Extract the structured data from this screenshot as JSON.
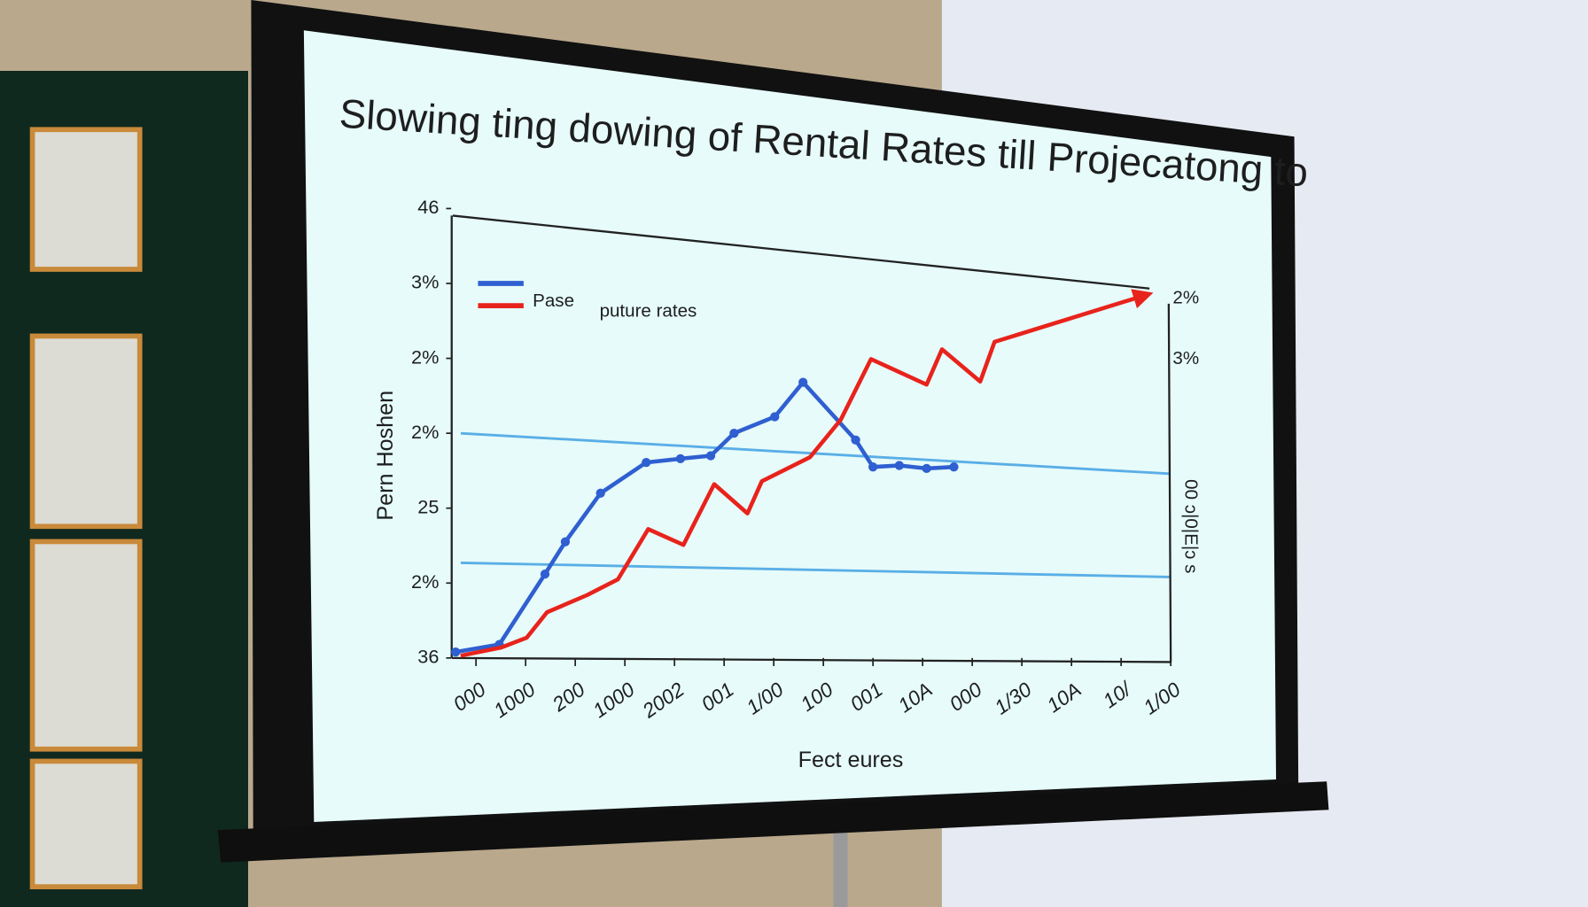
{
  "chart_data": {
    "type": "line",
    "title": "Slowing ting dowing of Rental Rates till Projecatong to",
    "xlabel": "Fect eures",
    "ylabel": "Pern Hoshen",
    "y2label": "00 ɔ|0|E|ɔ s",
    "y2ticks_labels": [
      "2%",
      "3%"
    ],
    "xlim": [
      -0.5,
      14
    ],
    "xticks": [
      {
        "value": 0,
        "label": "000"
      },
      {
        "value": 1,
        "label": "1000"
      },
      {
        "value": 2,
        "label": "200"
      },
      {
        "value": 3,
        "label": "1000"
      },
      {
        "value": 4,
        "label": "2002"
      },
      {
        "value": 5,
        "label": "001"
      },
      {
        "value": 6,
        "label": "1/00"
      },
      {
        "value": 7,
        "label": "100"
      },
      {
        "value": 8,
        "label": "001"
      },
      {
        "value": 9,
        "label": "10A"
      },
      {
        "value": 10,
        "label": "000"
      },
      {
        "value": 11,
        "label": "1/30"
      },
      {
        "value": 12,
        "label": "10A"
      },
      {
        "value": 13,
        "label": "10/"
      },
      {
        "value": 14,
        "label": "1/00"
      }
    ],
    "ylim": [
      0,
      6
    ],
    "yticks": [
      {
        "value": 0,
        "label": "36"
      },
      {
        "value": 1,
        "label": "2%"
      },
      {
        "value": 2,
        "label": "25"
      },
      {
        "value": 3,
        "label": "2%"
      },
      {
        "value": 4,
        "label": "2%"
      },
      {
        "value": 5,
        "label": "3%"
      },
      {
        "value": 6,
        "label": "46"
      }
    ],
    "legend": "top-left",
    "series": [
      {
        "name": "Pase",
        "color": "#2f5fd0",
        "markers": true,
        "x": [
          -0.41,
          0.47,
          1.39,
          1.8,
          2.51,
          3.43,
          4.12,
          4.73,
          5.2,
          6.02,
          6.59,
          7.65,
          8.0,
          8.53,
          9.08,
          9.63
        ],
        "values": [
          0.08,
          0.18,
          1.12,
          1.55,
          2.2,
          2.61,
          2.66,
          2.7,
          3.0,
          3.22,
          3.68,
          2.91,
          2.55,
          2.57,
          2.53,
          2.55
        ]
      },
      {
        "name": "puture rates",
        "color": "#e8231c",
        "markers": false,
        "x": [
          -0.31,
          0.51,
          1.02,
          1.43,
          2.24,
          2.86,
          3.47,
          4.18,
          4.8,
          5.47,
          5.76,
          6.73,
          7.35,
          7.96,
          9.08,
          9.39,
          10.16,
          10.45,
          13.57
        ],
        "values": [
          0.03,
          0.14,
          0.27,
          0.61,
          0.84,
          1.05,
          1.72,
          1.51,
          2.32,
          1.93,
          2.36,
          2.68,
          3.18,
          3.99,
          3.65,
          4.12,
          3.69,
          4.22,
          4.86
        ]
      }
    ]
  }
}
